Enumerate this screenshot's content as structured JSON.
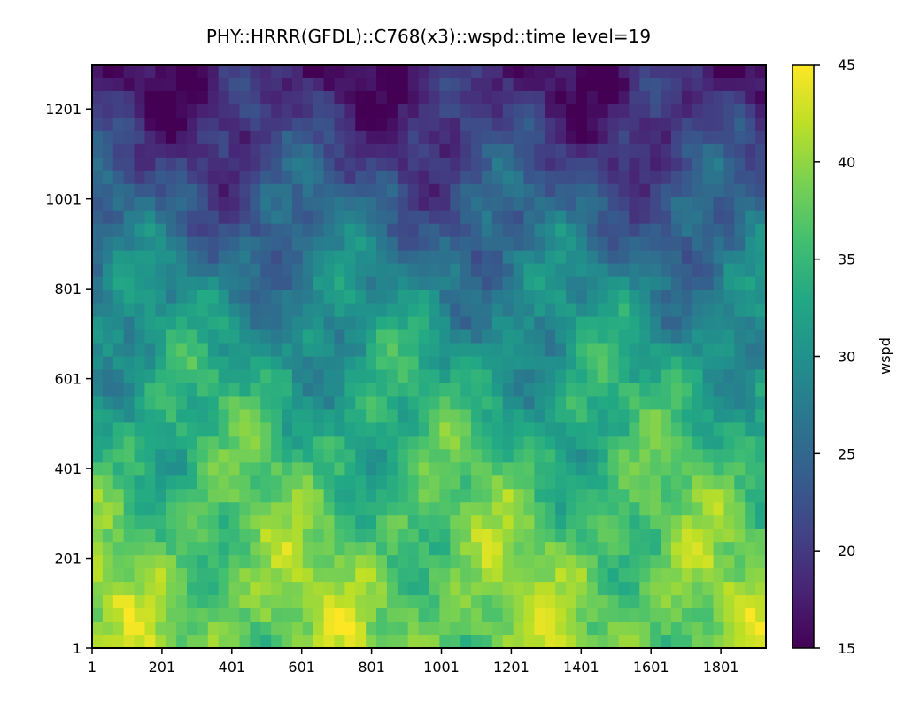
{
  "chart_data": {
    "type": "heatmap",
    "title": "PHY::HRRR(GFDL)::C768(x3)::wspd::time level=19",
    "xlabel": "",
    "ylabel": "",
    "xlim": [
      1,
      1930
    ],
    "ylim": [
      1,
      1300
    ],
    "x_ticks": [
      1,
      201,
      401,
      601,
      801,
      1001,
      1201,
      1401,
      1601,
      1801
    ],
    "y_ticks": [
      1,
      201,
      401,
      601,
      801,
      1001,
      1201
    ],
    "x_tick_labels": [
      "1",
      "201",
      "401",
      "601",
      "801",
      "1001",
      "1201",
      "1401",
      "1601",
      "1801"
    ],
    "y_tick_labels": [
      "1",
      "201",
      "401",
      "601",
      "801",
      "1001",
      "1201"
    ],
    "colormap": "viridis",
    "colorbar": {
      "label": "wspd",
      "range": [
        15,
        45
      ],
      "ticks": [
        15,
        20,
        25,
        30,
        35,
        40,
        45
      ],
      "tick_labels": [
        "15",
        "20",
        "25",
        "30",
        "35",
        "40",
        "45"
      ]
    },
    "field_profile": {
      "description_rows": "approximate mean wspd by y (grid index)",
      "y": [
        1,
        100,
        200,
        300,
        400,
        500,
        600,
        700,
        800,
        900,
        1000,
        1100,
        1200,
        1300
      ],
      "mean_wspd": [
        39,
        39,
        38,
        37,
        35.5,
        34,
        32.5,
        30.5,
        28.5,
        26,
        23.5,
        21,
        18.5,
        17
      ]
    }
  }
}
